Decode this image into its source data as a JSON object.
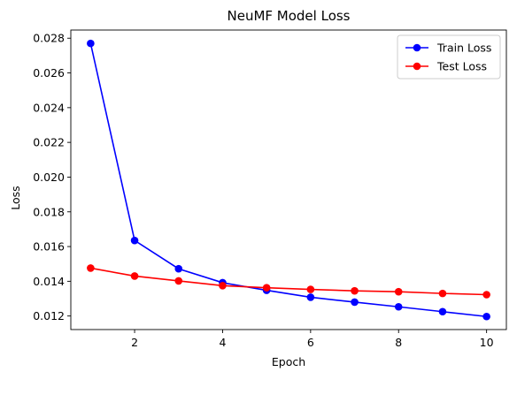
{
  "chart_data": {
    "type": "line",
    "title": "NeuMF Model Loss",
    "xlabel": "Epoch",
    "ylabel": "Loss",
    "x": [
      1,
      2,
      3,
      4,
      5,
      6,
      7,
      8,
      9,
      10
    ],
    "xticks": [
      2,
      4,
      6,
      8,
      10
    ],
    "xlim": [
      0.55,
      10.45
    ],
    "yticks": [
      0.012,
      0.014,
      0.016,
      0.018,
      0.02,
      0.022,
      0.024,
      0.026,
      0.028
    ],
    "ytick_labels": [
      "0.012",
      "0.014",
      "0.016",
      "0.018",
      "0.020",
      "0.022",
      "0.024",
      "0.026",
      "0.028"
    ],
    "ylim": [
      0.01122,
      0.02847
    ],
    "grid": false,
    "legend_position": "top-right",
    "series": [
      {
        "name": "Train Loss",
        "color": "#0000ff",
        "marker": "circle",
        "values": [
          0.0277,
          0.01635,
          0.01472,
          0.01392,
          0.01348,
          0.01308,
          0.0128,
          0.01253,
          0.01225,
          0.01197
        ]
      },
      {
        "name": "Test Loss",
        "color": "#ff0000",
        "marker": "circle",
        "values": [
          0.01476,
          0.0143,
          0.01402,
          0.01375,
          0.01363,
          0.01353,
          0.01345,
          0.0134,
          0.0133,
          0.01323
        ]
      }
    ]
  }
}
